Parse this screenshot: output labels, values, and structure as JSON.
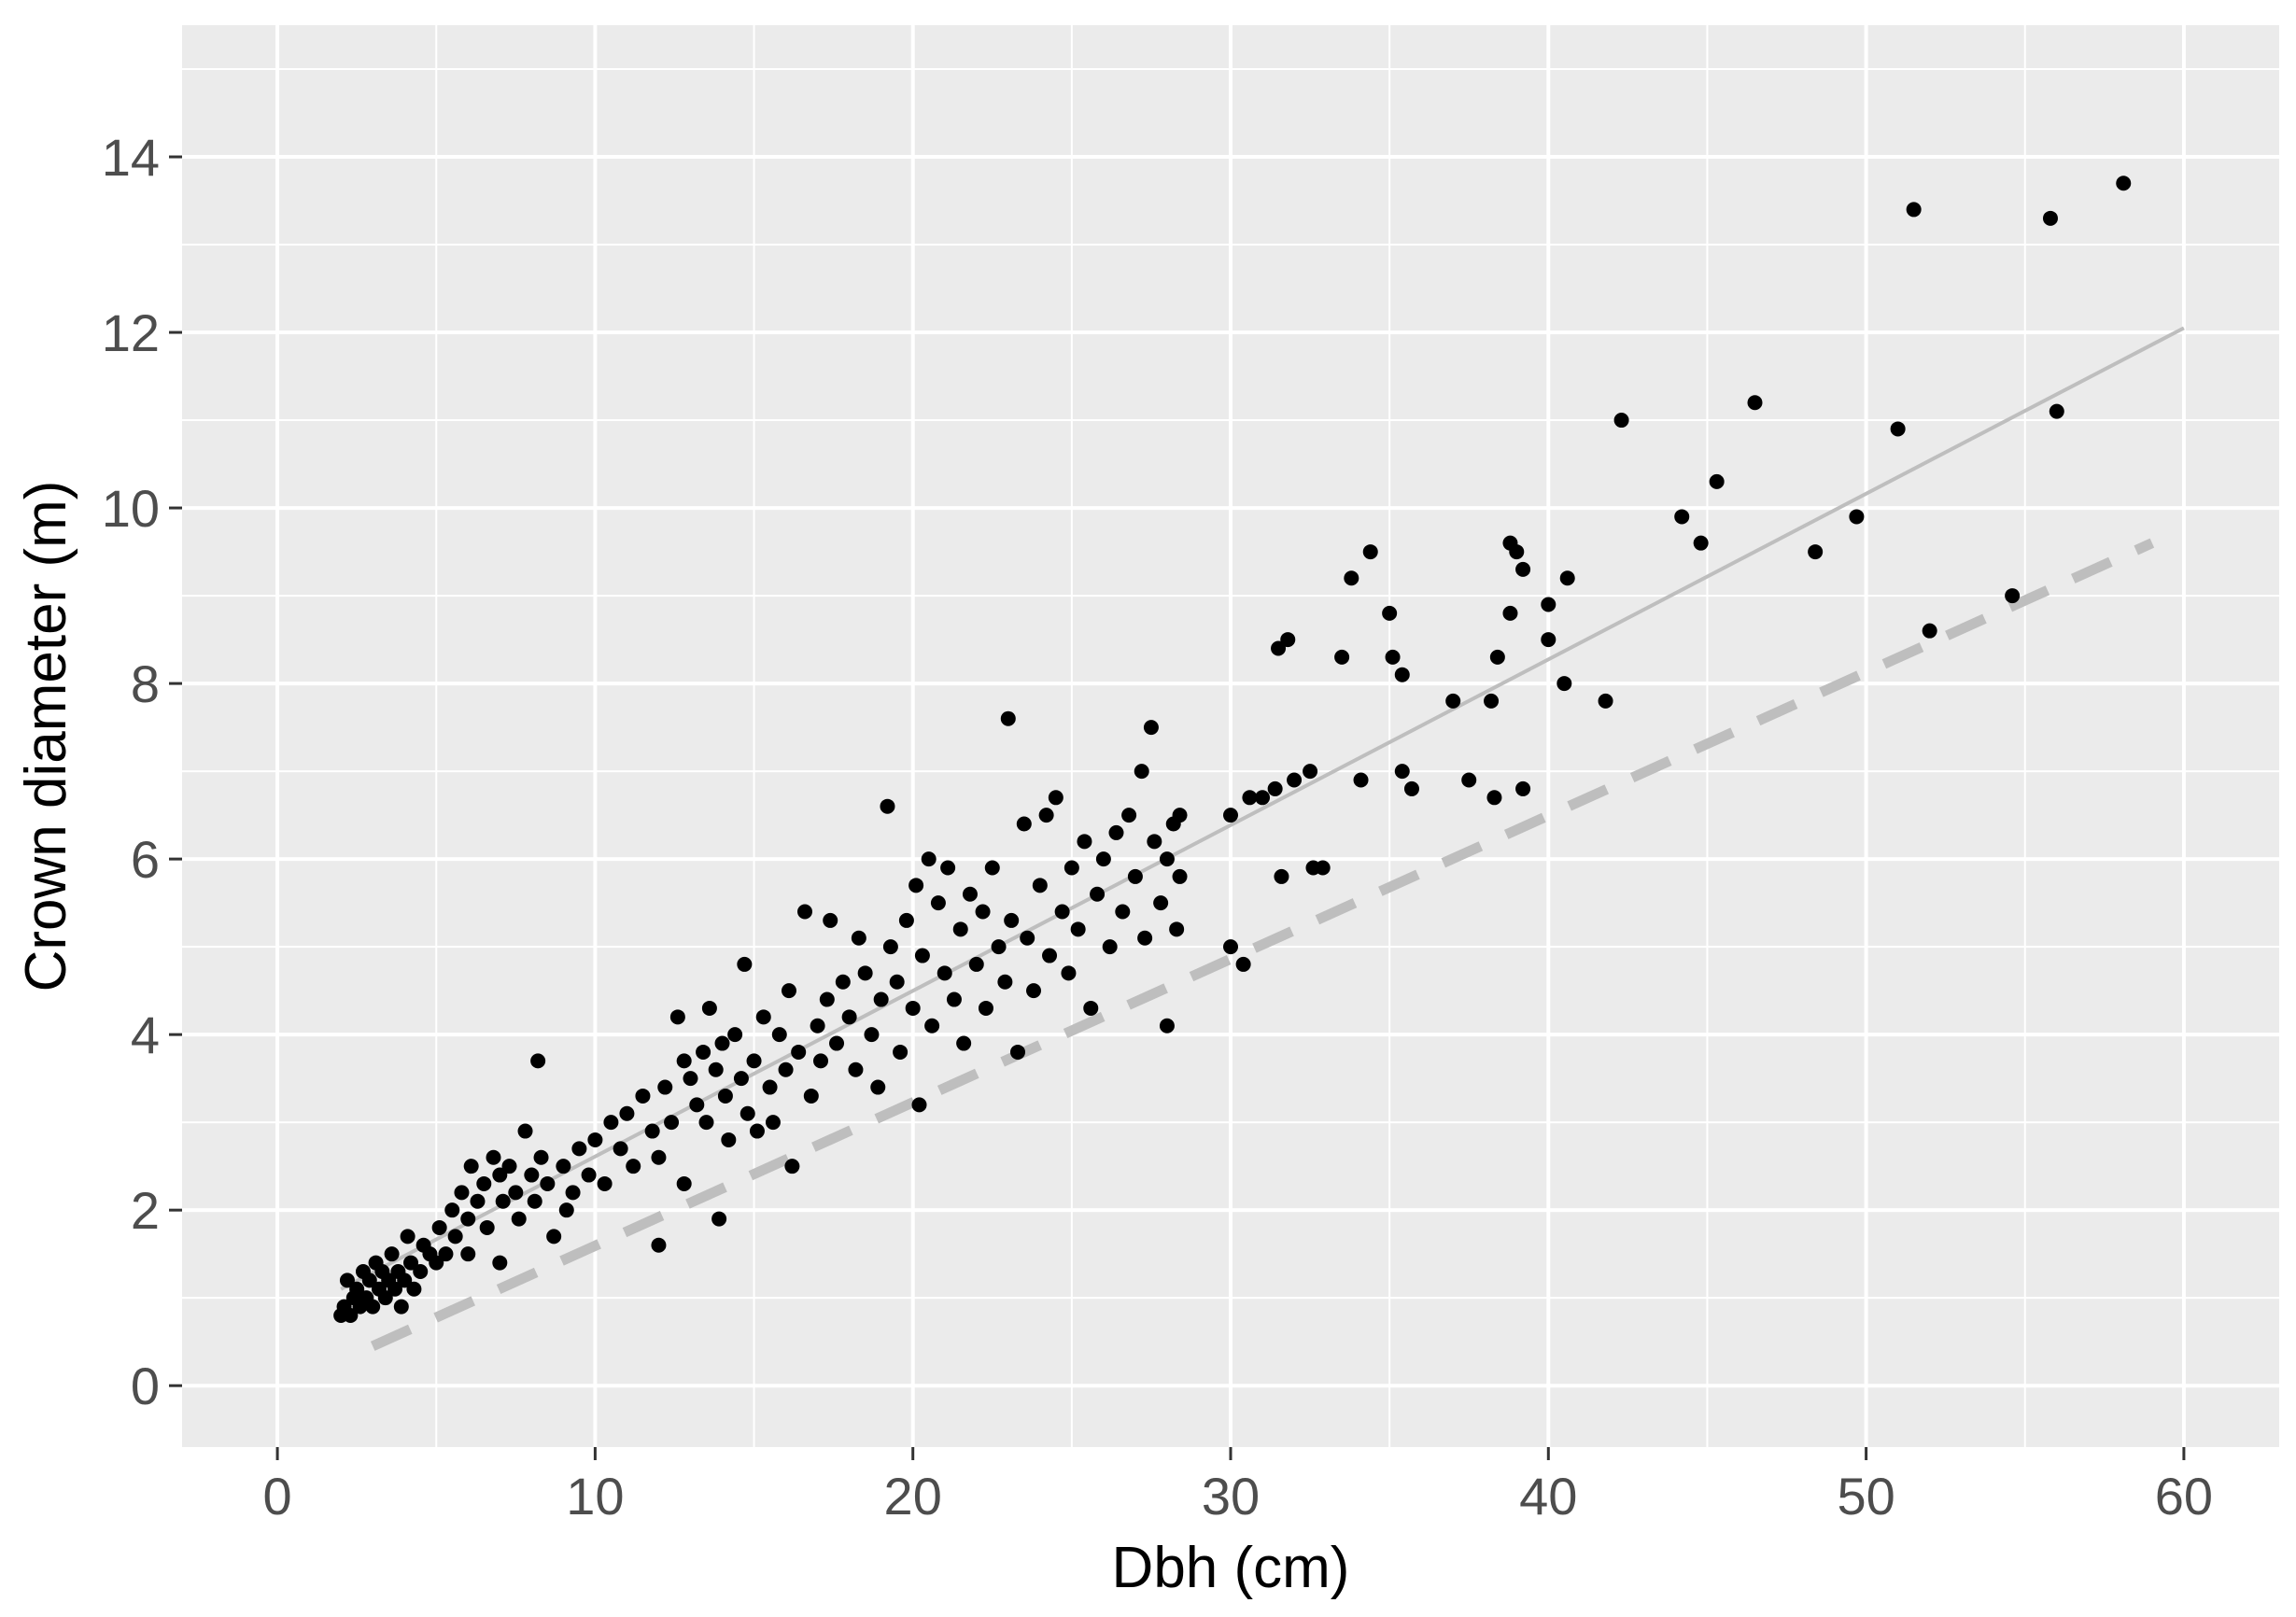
{
  "chart_data": {
    "type": "scatter",
    "title": "",
    "xlabel": "Dbh (cm)",
    "ylabel": "Crown diameter (m)",
    "xlim": [
      -3,
      63
    ],
    "ylim": [
      -0.7,
      15.5
    ],
    "x_ticks": [
      0,
      10,
      20,
      30,
      40,
      50,
      60
    ],
    "y_ticks": [
      0,
      2,
      4,
      6,
      8,
      10,
      12,
      14
    ],
    "x_tick_labels": [
      "0",
      "10",
      "20",
      "30",
      "40",
      "50",
      "60"
    ],
    "y_tick_labels": [
      "0",
      "2",
      "4",
      "6",
      "8",
      "10",
      "12",
      "14"
    ],
    "grid": true,
    "background_color": "#ebebeb",
    "grid_color": "#ffffff",
    "point_color": "#000000",
    "fit_line_color": "#bebebe",
    "series": [
      {
        "type": "line",
        "style": "solid",
        "x": [
          2,
          60
        ],
        "y": [
          1.1,
          12.05
        ]
      },
      {
        "type": "line",
        "style": "dashed",
        "x": [
          3,
          59
        ],
        "y": [
          0.45,
          9.6
        ]
      },
      {
        "type": "scatter",
        "points": [
          [
            2.0,
            0.8
          ],
          [
            2.1,
            0.9
          ],
          [
            2.2,
            1.2
          ],
          [
            2.3,
            0.8
          ],
          [
            2.4,
            1.0
          ],
          [
            2.5,
            1.1
          ],
          [
            2.6,
            0.9
          ],
          [
            2.7,
            1.3
          ],
          [
            2.8,
            1.0
          ],
          [
            2.9,
            1.2
          ],
          [
            3.0,
            0.9
          ],
          [
            3.1,
            1.4
          ],
          [
            3.2,
            1.1
          ],
          [
            3.3,
            1.3
          ],
          [
            3.4,
            1.0
          ],
          [
            3.5,
            1.2
          ],
          [
            3.6,
            1.5
          ],
          [
            3.7,
            1.1
          ],
          [
            3.8,
            1.3
          ],
          [
            3.9,
            0.9
          ],
          [
            4.0,
            1.2
          ],
          [
            4.1,
            1.7
          ],
          [
            4.2,
            1.4
          ],
          [
            4.3,
            1.1
          ],
          [
            4.5,
            1.3
          ],
          [
            4.6,
            1.6
          ],
          [
            4.8,
            1.5
          ],
          [
            5.0,
            1.4
          ],
          [
            5.1,
            1.8
          ],
          [
            5.3,
            1.5
          ],
          [
            5.5,
            2.0
          ],
          [
            5.6,
            1.7
          ],
          [
            5.8,
            2.2
          ],
          [
            6.0,
            1.9
          ],
          [
            6.0,
            1.5
          ],
          [
            6.1,
            2.5
          ],
          [
            6.3,
            2.1
          ],
          [
            6.5,
            2.3
          ],
          [
            6.6,
            1.8
          ],
          [
            6.8,
            2.6
          ],
          [
            7.0,
            2.4
          ],
          [
            7.0,
            1.4
          ],
          [
            7.1,
            2.1
          ],
          [
            7.3,
            2.5
          ],
          [
            7.5,
            2.2
          ],
          [
            7.6,
            1.9
          ],
          [
            7.8,
            2.9
          ],
          [
            8.0,
            2.4
          ],
          [
            8.1,
            2.1
          ],
          [
            8.2,
            3.7
          ],
          [
            8.3,
            2.6
          ],
          [
            8.5,
            2.3
          ],
          [
            8.7,
            1.7
          ],
          [
            9.0,
            2.5
          ],
          [
            9.1,
            2.0
          ],
          [
            9.3,
            2.2
          ],
          [
            9.5,
            2.7
          ],
          [
            9.8,
            2.4
          ],
          [
            10.0,
            2.8
          ],
          [
            10.3,
            2.3
          ],
          [
            10.5,
            3.0
          ],
          [
            10.8,
            2.7
          ],
          [
            11.0,
            3.1
          ],
          [
            11.2,
            2.5
          ],
          [
            11.5,
            3.3
          ],
          [
            11.8,
            2.9
          ],
          [
            12.0,
            2.6
          ],
          [
            12.0,
            1.6
          ],
          [
            12.2,
            3.4
          ],
          [
            12.4,
            3.0
          ],
          [
            12.6,
            4.2
          ],
          [
            12.8,
            3.7
          ],
          [
            12.8,
            2.3
          ],
          [
            13.0,
            3.5
          ],
          [
            13.2,
            3.2
          ],
          [
            13.4,
            3.8
          ],
          [
            13.5,
            3.0
          ],
          [
            13.6,
            4.3
          ],
          [
            13.8,
            3.6
          ],
          [
            13.9,
            1.9
          ],
          [
            14.0,
            3.9
          ],
          [
            14.1,
            3.3
          ],
          [
            14.2,
            2.8
          ],
          [
            14.4,
            4.0
          ],
          [
            14.6,
            3.5
          ],
          [
            14.7,
            4.8
          ],
          [
            14.8,
            3.1
          ],
          [
            15.0,
            3.7
          ],
          [
            15.1,
            2.9
          ],
          [
            15.3,
            4.2
          ],
          [
            15.5,
            3.4
          ],
          [
            15.6,
            3.0
          ],
          [
            15.8,
            4.0
          ],
          [
            16.0,
            3.6
          ],
          [
            16.1,
            4.5
          ],
          [
            16.2,
            2.5
          ],
          [
            16.4,
            3.8
          ],
          [
            16.6,
            5.4
          ],
          [
            16.8,
            3.3
          ],
          [
            17.0,
            4.1
          ],
          [
            17.1,
            3.7
          ],
          [
            17.3,
            4.4
          ],
          [
            17.4,
            5.3
          ],
          [
            17.6,
            3.9
          ],
          [
            17.8,
            4.6
          ],
          [
            18.0,
            4.2
          ],
          [
            18.2,
            3.6
          ],
          [
            18.3,
            5.1
          ],
          [
            18.5,
            4.7
          ],
          [
            18.7,
            4.0
          ],
          [
            18.9,
            3.4
          ],
          [
            19.0,
            4.4
          ],
          [
            19.2,
            6.6
          ],
          [
            19.3,
            5.0
          ],
          [
            19.5,
            4.6
          ],
          [
            19.6,
            3.8
          ],
          [
            19.8,
            5.3
          ],
          [
            20.0,
            4.3
          ],
          [
            20.1,
            5.7
          ],
          [
            20.2,
            3.2
          ],
          [
            20.3,
            4.9
          ],
          [
            20.5,
            6.0
          ],
          [
            20.6,
            4.1
          ],
          [
            20.8,
            5.5
          ],
          [
            21.0,
            4.7
          ],
          [
            21.1,
            5.9
          ],
          [
            21.3,
            4.4
          ],
          [
            21.5,
            5.2
          ],
          [
            21.6,
            3.9
          ],
          [
            21.8,
            5.6
          ],
          [
            22.0,
            4.8
          ],
          [
            22.2,
            5.4
          ],
          [
            22.3,
            4.3
          ],
          [
            22.5,
            5.9
          ],
          [
            22.7,
            5.0
          ],
          [
            22.9,
            4.6
          ],
          [
            23.0,
            7.6
          ],
          [
            23.1,
            5.3
          ],
          [
            23.3,
            3.8
          ],
          [
            23.5,
            6.4
          ],
          [
            23.6,
            5.1
          ],
          [
            23.8,
            4.5
          ],
          [
            24.0,
            5.7
          ],
          [
            24.2,
            6.5
          ],
          [
            24.3,
            4.9
          ],
          [
            24.5,
            6.7
          ],
          [
            24.7,
            5.4
          ],
          [
            24.9,
            4.7
          ],
          [
            25.0,
            5.9
          ],
          [
            25.2,
            5.2
          ],
          [
            25.4,
            6.2
          ],
          [
            25.6,
            4.3
          ],
          [
            25.8,
            5.6
          ],
          [
            26.0,
            6.0
          ],
          [
            26.2,
            5.0
          ],
          [
            26.4,
            6.3
          ],
          [
            26.6,
            5.4
          ],
          [
            26.8,
            6.5
          ],
          [
            27.0,
            5.8
          ],
          [
            27.2,
            7.0
          ],
          [
            27.3,
            5.1
          ],
          [
            27.5,
            7.5
          ],
          [
            27.6,
            6.2
          ],
          [
            27.8,
            5.5
          ],
          [
            28.0,
            6.0
          ],
          [
            28.0,
            4.1
          ],
          [
            28.2,
            6.4
          ],
          [
            28.3,
            5.2
          ],
          [
            28.4,
            5.8
          ],
          [
            28.4,
            6.5
          ],
          [
            30.0,
            6.5
          ],
          [
            30.0,
            5.0
          ],
          [
            30.4,
            4.8
          ],
          [
            30.6,
            6.7
          ],
          [
            31.0,
            6.7
          ],
          [
            31.4,
            6.8
          ],
          [
            31.5,
            8.4
          ],
          [
            31.6,
            5.8
          ],
          [
            31.8,
            8.5
          ],
          [
            32.0,
            6.9
          ],
          [
            32.5,
            7.0
          ],
          [
            32.6,
            5.9
          ],
          [
            32.9,
            5.9
          ],
          [
            33.5,
            8.3
          ],
          [
            33.8,
            9.2
          ],
          [
            34.1,
            6.9
          ],
          [
            34.4,
            9.5
          ],
          [
            35.0,
            8.8
          ],
          [
            35.1,
            8.3
          ],
          [
            35.4,
            8.1
          ],
          [
            35.4,
            7.0
          ],
          [
            35.7,
            6.8
          ],
          [
            37.0,
            7.8
          ],
          [
            37.5,
            6.9
          ],
          [
            38.2,
            7.8
          ],
          [
            38.3,
            6.7
          ],
          [
            38.4,
            8.3
          ],
          [
            38.8,
            9.6
          ],
          [
            38.8,
            8.8
          ],
          [
            39.0,
            9.5
          ],
          [
            39.2,
            6.8
          ],
          [
            39.2,
            9.3
          ],
          [
            40.0,
            8.9
          ],
          [
            40.0,
            8.5
          ],
          [
            40.5,
            8.0
          ],
          [
            40.6,
            9.2
          ],
          [
            41.8,
            7.8
          ],
          [
            42.3,
            11.0
          ],
          [
            44.2,
            9.9
          ],
          [
            44.8,
            9.6
          ],
          [
            45.3,
            10.3
          ],
          [
            46.5,
            11.2
          ],
          [
            48.4,
            9.5
          ],
          [
            49.7,
            9.9
          ],
          [
            51.0,
            10.9
          ],
          [
            51.5,
            13.4
          ],
          [
            52.0,
            8.6
          ],
          [
            54.6,
            9.0
          ],
          [
            55.8,
            13.3
          ],
          [
            56.0,
            11.1
          ],
          [
            58.1,
            13.7
          ]
        ]
      }
    ]
  }
}
